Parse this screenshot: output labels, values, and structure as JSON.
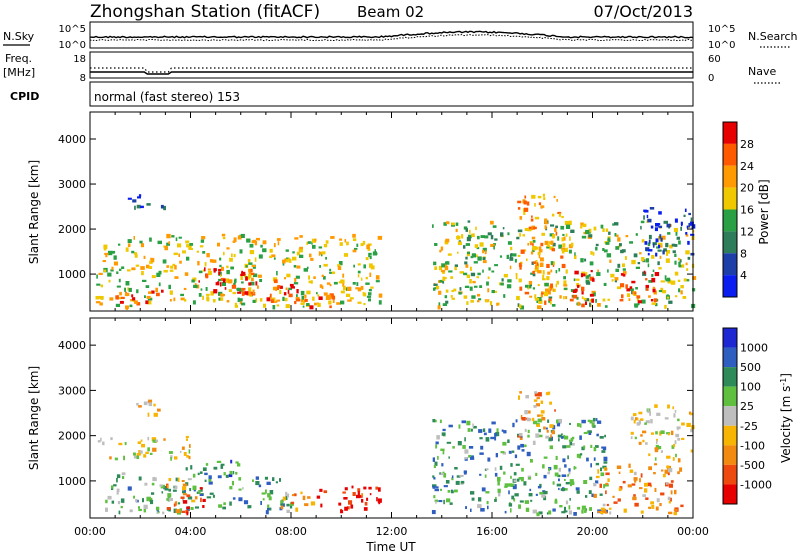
{
  "header": {
    "station": "Zhongshan Station (fitACF)",
    "beam": "Beam 02",
    "date": "07/Oct/2013"
  },
  "noise_panel": {
    "left_label": "N.Sky",
    "right_label": "N.Search",
    "left_ticks": [
      "10^5",
      "10^0"
    ],
    "right_ticks": [
      "10^5",
      "10^0"
    ]
  },
  "freq_panel": {
    "left_label_1": "Freq.",
    "left_label_2": "[MHz]",
    "right_label": "Nave",
    "left_ticks": [
      "18",
      "8"
    ],
    "right_ticks": [
      "60",
      "0"
    ]
  },
  "cpid_panel": {
    "label": "CPID",
    "text": "normal (fast stereo) 153"
  },
  "chart_data": [
    {
      "type": "heatmap",
      "name": "power",
      "ylabel": "Slant Range [km]",
      "yticks": [
        1000,
        2000,
        3000,
        4000
      ],
      "ylim": [
        180,
        4600
      ],
      "xlim_hours": [
        0,
        24
      ],
      "colorbar": {
        "label": "Power [dB]",
        "ticks": [
          "28",
          "24",
          "20",
          "16",
          "12",
          "8",
          "4"
        ],
        "colors": [
          "#e60000",
          "#ff5a00",
          "#ff9a00",
          "#f0c800",
          "#2aa045",
          "#2e7d5a",
          "#1c3fa8",
          "#0a1ef0"
        ]
      },
      "scatter_regions": [
        {
          "t0": 0.2,
          "t1": 11.5,
          "r0": 300,
          "r1": 1900,
          "level": 0.55
        },
        {
          "t0": 4.3,
          "t1": 6.5,
          "r0": 600,
          "r1": 1200,
          "level": 0.95
        },
        {
          "t0": 6.0,
          "t1": 8.3,
          "r0": 400,
          "r1": 900,
          "level": 0.85
        },
        {
          "t0": 1.0,
          "t1": 3.5,
          "r0": 350,
          "r1": 700,
          "level": 0.8
        },
        {
          "t0": 8.5,
          "t1": 10.5,
          "r0": 300,
          "r1": 600,
          "level": 0.8
        },
        {
          "t0": 1.5,
          "t1": 3.0,
          "r0": 2500,
          "r1": 2800,
          "level": 0.2
        },
        {
          "t0": 13.6,
          "t1": 24,
          "r0": 300,
          "r1": 2200,
          "level": 0.5
        },
        {
          "t0": 17.0,
          "t1": 18.8,
          "r0": 400,
          "r1": 2800,
          "level": 0.7
        },
        {
          "t0": 19.0,
          "t1": 20.0,
          "r0": 300,
          "r1": 1100,
          "level": 0.9
        },
        {
          "t0": 21.0,
          "t1": 22.5,
          "r0": 400,
          "r1": 1100,
          "level": 0.85
        },
        {
          "t0": 22.0,
          "t1": 24.0,
          "r0": 1400,
          "r1": 2500,
          "level": 0.15
        }
      ]
    },
    {
      "type": "heatmap",
      "name": "velocity",
      "ylabel": "Slant Range [km]",
      "xlabel": "Time UT",
      "yticks": [
        1000,
        2000,
        3000,
        4000
      ],
      "ylim": [
        180,
        4600
      ],
      "xticks": [
        "00:00",
        "04:00",
        "08:00",
        "12:00",
        "16:00",
        "20:00",
        "00:00"
      ],
      "xlim_hours": [
        0,
        24
      ],
      "colorbar": {
        "label": "Velocity [m s^-1]",
        "ticks": [
          "1000",
          "500",
          "100",
          "25",
          "-25",
          "-100",
          "-500",
          "-1000"
        ],
        "colors": [
          "#1e28d2",
          "#2e5fc0",
          "#2e8a58",
          "#5fc040",
          "#bebebe",
          "#f7b400",
          "#f28a10",
          "#ee4a10",
          "#e60000"
        ]
      },
      "scatter_regions": [
        {
          "t0": 0.2,
          "t1": 4.0,
          "r0": 1500,
          "r1": 2000,
          "level": 0.45
        },
        {
          "t0": 0.5,
          "t1": 4.0,
          "r0": 300,
          "r1": 1200,
          "level": 0.65
        },
        {
          "t0": 3.8,
          "t1": 6.0,
          "r0": 400,
          "r1": 1500,
          "level": 0.72
        },
        {
          "t0": 3.0,
          "t1": 4.5,
          "r0": 300,
          "r1": 1100,
          "level": 0.2
        },
        {
          "t0": 6.0,
          "t1": 8.0,
          "r0": 350,
          "r1": 1100,
          "level": 0.72
        },
        {
          "t0": 7.5,
          "t1": 9.0,
          "r0": 350,
          "r1": 800,
          "level": 0.3
        },
        {
          "t0": 9.0,
          "t1": 11.5,
          "r0": 300,
          "r1": 900,
          "level": 0.08
        },
        {
          "t0": 1.5,
          "t1": 3.0,
          "r0": 2500,
          "r1": 2800,
          "level": 0.45
        },
        {
          "t0": 13.6,
          "t1": 20.5,
          "r0": 300,
          "r1": 2400,
          "level": 0.7
        },
        {
          "t0": 17.0,
          "t1": 18.5,
          "r0": 1800,
          "r1": 3000,
          "level": 0.35
        },
        {
          "t0": 20.0,
          "t1": 23.5,
          "r0": 300,
          "r1": 1400,
          "level": 0.3
        },
        {
          "t0": 21.5,
          "t1": 24.0,
          "r0": 1500,
          "r1": 2700,
          "level": 0.45
        }
      ]
    }
  ]
}
